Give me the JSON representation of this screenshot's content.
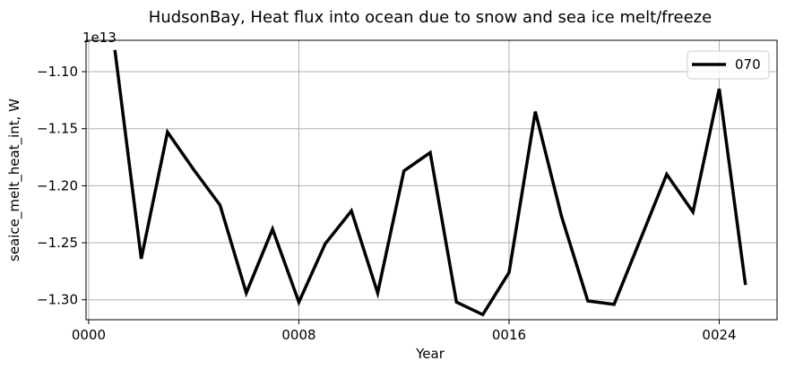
{
  "chart_data": {
    "type": "line",
    "title": "HudsonBay, Heat flux into ocean due to snow and sea ice melt/freeze",
    "xlabel": "Year",
    "ylabel": "seaice_melt_heat_int, W",
    "offset_label": "1e13",
    "xlim": [
      -0.1,
      26.2
    ],
    "ylim": [
      -1.3175,
      -1.0725
    ],
    "x_ticks": [
      {
        "value": 0,
        "label": "0000"
      },
      {
        "value": 8,
        "label": "0008"
      },
      {
        "value": 16,
        "label": "0016"
      },
      {
        "value": 24,
        "label": "0024"
      }
    ],
    "y_ticks": [
      {
        "value": -1.1,
        "label": "−1.10"
      },
      {
        "value": -1.15,
        "label": "−1.15"
      },
      {
        "value": -1.2,
        "label": "−1.20"
      },
      {
        "value": -1.25,
        "label": "−1.25"
      },
      {
        "value": -1.3,
        "label": "−1.30"
      }
    ],
    "grid": true,
    "legend_position": "top-right",
    "series": [
      {
        "name": "070",
        "color": "#000000",
        "x": [
          1,
          2,
          3,
          4,
          5,
          6,
          7,
          8,
          9,
          10,
          11,
          12,
          13,
          14,
          15,
          16,
          17,
          18,
          19,
          20,
          21,
          22,
          23,
          24,
          25
        ],
        "y": [
          -1.081,
          -1.264,
          -1.153,
          -1.186,
          -1.217,
          -1.294,
          -1.238,
          -1.302,
          -1.251,
          -1.222,
          -1.294,
          -1.187,
          -1.171,
          -1.302,
          -1.313,
          -1.276,
          -1.135,
          -1.227,
          -1.301,
          -1.304,
          -1.247,
          -1.19,
          -1.223,
          -1.115,
          -1.287
        ]
      }
    ]
  }
}
